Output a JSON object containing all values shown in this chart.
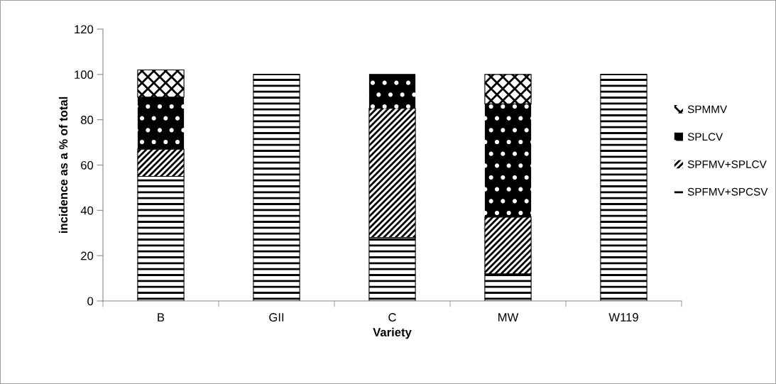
{
  "chart_data": {
    "type": "bar",
    "stacked": true,
    "xlabel": "Variety",
    "ylabel": "incidence as a % of total",
    "categories": [
      "B",
      "GII",
      "C",
      "MW",
      "W119"
    ],
    "series": [
      {
        "name": "SPFMV+SPCSV",
        "color": "#000000",
        "values": [
          55,
          100,
          28,
          12,
          100
        ]
      },
      {
        "name": "SPFMV+SPLCV",
        "color": "#000000",
        "values": [
          12,
          0,
          57,
          25,
          0
        ]
      },
      {
        "name": "SPLCV",
        "color": "#000000",
        "values": [
          23,
          0,
          15,
          50,
          0
        ]
      },
      {
        "name": "SPMMV",
        "color": "#000000",
        "values": [
          12,
          0,
          0,
          13,
          0
        ]
      }
    ],
    "ylim": [
      0,
      120
    ],
    "yticks": [
      0,
      20,
      40,
      60,
      80,
      100,
      120
    ],
    "grid": false,
    "legend": "right"
  }
}
